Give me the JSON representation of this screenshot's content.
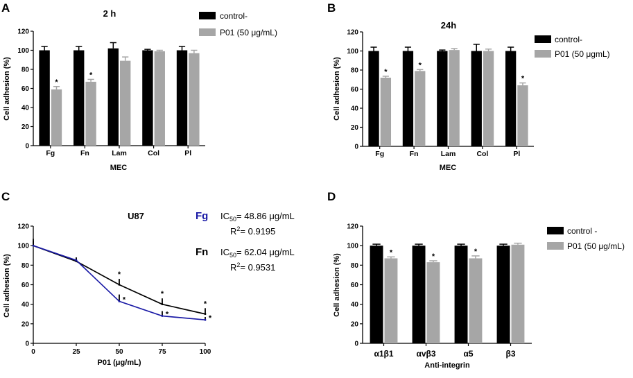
{
  "panel_labels": {
    "A": "A",
    "B": "B",
    "C": "C",
    "D": "D"
  },
  "chart_data": [
    {
      "panel": "A",
      "type": "bar",
      "title": "2 h",
      "xlabel": "MEC",
      "ylabel": "Cell adhesion (%)",
      "ylim": [
        0,
        120
      ],
      "yticks": [
        "0",
        "20",
        "40",
        "60",
        "80",
        "100",
        "120"
      ],
      "categories": [
        "Fg",
        "Fn",
        "Lam",
        "Col",
        "Pl"
      ],
      "series": [
        {
          "name": "control-",
          "color": "#000000",
          "values": [
            100,
            100,
            102,
            100,
            100
          ],
          "errors": [
            4,
            4,
            6,
            1,
            4
          ]
        },
        {
          "name": "P01 (50 μg/mL)",
          "color": "#a6a6a6",
          "values": [
            59,
            67,
            89,
            99,
            97
          ],
          "errors": [
            3,
            2.5,
            4,
            1,
            3
          ]
        }
      ],
      "significance": [
        "*",
        "*",
        "",
        "",
        ""
      ],
      "legend": "top-right"
    },
    {
      "panel": "B",
      "type": "bar",
      "title": "24h",
      "xlabel": "MEC",
      "ylabel": "Cell adhesion (%)",
      "ylim": [
        0,
        120
      ],
      "yticks": [
        "0",
        "20",
        "40",
        "60",
        "80",
        "100",
        "120"
      ],
      "categories": [
        "Fg",
        "Fn",
        "Lam",
        "Col",
        "Pl"
      ],
      "series": [
        {
          "name": "control-",
          "color": "#000000",
          "values": [
            100,
            100,
            100,
            100,
            100
          ],
          "errors": [
            4,
            4,
            1,
            7,
            4
          ]
        },
        {
          "name": "P01 (50 μgmL)",
          "color": "#a6a6a6",
          "values": [
            72,
            79,
            101,
            100,
            64
          ],
          "errors": [
            1.5,
            1.5,
            1.5,
            2,
            2.5
          ]
        }
      ],
      "significance": [
        "*",
        "*",
        "",
        "",
        "*"
      ],
      "legend": "top-right"
    },
    {
      "panel": "C",
      "type": "line",
      "title": "U87",
      "xlabel": "P01 (μg/mL)",
      "ylabel": "Cell adhesion (%)",
      "xlim": [
        0,
        100
      ],
      "ylim": [
        0,
        120
      ],
      "xticks": [
        "0",
        "25",
        "50",
        "75",
        "100"
      ],
      "yticks": [
        "0",
        "20",
        "40",
        "60",
        "80",
        "100",
        "120"
      ],
      "x": [
        0,
        25,
        50,
        75,
        100
      ],
      "series": [
        {
          "name": "Fg",
          "color": "#1a1aa6",
          "values": [
            100,
            85,
            43,
            28,
            24
          ],
          "errors": [
            5,
            3,
            7,
            5,
            3
          ],
          "significance": [
            "",
            "",
            "*",
            "*",
            "*"
          ]
        },
        {
          "name": "Fn",
          "color": "#000000",
          "values": [
            100,
            84,
            60,
            40,
            30
          ],
          "errors": [
            7,
            3,
            6,
            6,
            6
          ],
          "significance": [
            "",
            "",
            "*",
            "*",
            "*"
          ]
        }
      ],
      "annotations": [
        {
          "name": "Fg",
          "ic_label": "IC",
          "ic_sub": "50",
          "ic_value": "= 48.86 μg/mL",
          "r_label": "R",
          "r_sup": "2",
          "r_value": "= 0.9195"
        },
        {
          "name": "Fn",
          "ic_label": "IC",
          "ic_sub": "50",
          "ic_value": "= 62.04 μg/mL",
          "r_label": "R",
          "r_sup": "2",
          "r_value": "= 0.9531"
        }
      ]
    },
    {
      "panel": "D",
      "type": "bar",
      "title": "",
      "xlabel": "Anti-integrin",
      "ylabel": "Cell adhesion (%)",
      "ylim": [
        0,
        120
      ],
      "yticks": [
        "0",
        "20",
        "40",
        "60",
        "80",
        "100",
        "120"
      ],
      "categories": [
        "α1β1",
        "αvβ3",
        "α5",
        "β3"
      ],
      "series": [
        {
          "name": "control -",
          "color": "#000000",
          "values": [
            100,
            100,
            100,
            100
          ],
          "errors": [
            1.5,
            1.5,
            1.5,
            1.5
          ]
        },
        {
          "name": "P01 (50 μg/mL)",
          "color": "#a6a6a6",
          "values": [
            87,
            83,
            87,
            101
          ],
          "errors": [
            1.5,
            1.5,
            2.5,
            1.5
          ]
        }
      ],
      "significance": [
        "*",
        "*",
        "*",
        ""
      ],
      "legend": "top-right"
    }
  ]
}
